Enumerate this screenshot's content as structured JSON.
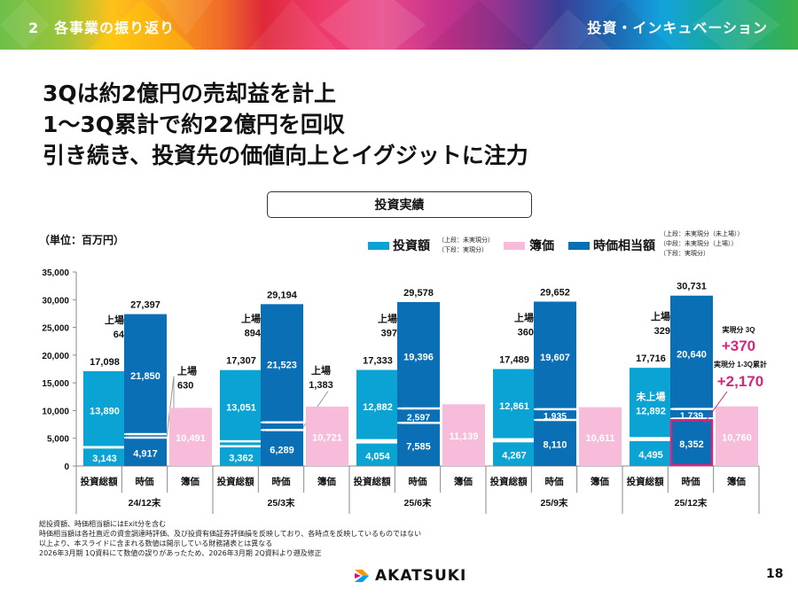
{
  "banner": {
    "section_label": "2　各事業の振り返り",
    "category_label": "投資・インキュベーション"
  },
  "headline": {
    "lines": [
      "3Qは約2億円の売却益を計上",
      "1～3Q累計で約22億円を回収",
      "引き続き、投資先の価値向上とイグジットに注力"
    ]
  },
  "section_box": {
    "label": "投資実績"
  },
  "unit_label": "（単位：百万円）",
  "legend": {
    "items": [
      {
        "label": "投資額",
        "color": "#0aa3d3",
        "notes": [
          "（上段：未実現分）",
          "（下段：実現分）"
        ]
      },
      {
        "label": "簿価",
        "color": "#f6bcd9",
        "notes": []
      },
      {
        "label": "時価相当額",
        "color": "#0b6fb5",
        "notes": [
          "（上段：未実現分（未上場））",
          "（中段：未実現分（上場））",
          "（下段：実現分）"
        ]
      }
    ]
  },
  "chart_data": {
    "type": "bar",
    "stacked": true,
    "title": "投資実績",
    "ylabel": "（単位：百万円）",
    "ylim": [
      0,
      35000
    ],
    "yticks": [
      0,
      5000,
      10000,
      15000,
      20000,
      25000,
      30000,
      35000
    ],
    "ytick_labels": [
      "0",
      "5,000",
      "10,000",
      "15,000",
      "20,000",
      "25,000",
      "30,000",
      "35,000"
    ],
    "grid": false,
    "legend_position": "top-right",
    "colors": {
      "investment": "#0aa3d3",
      "market": "#0b6fb5",
      "book": "#f6bcd9",
      "highlight": "#d6257a"
    },
    "sub_categories": [
      "投資総額",
      "時価",
      "簿価"
    ],
    "periods": [
      "24/12末",
      "25/3末",
      "25/6末",
      "25/9末",
      "25/12末"
    ],
    "groups": [
      {
        "period": "24/12末",
        "investment": {
          "total": "17,098",
          "realized": 3143,
          "unrealized": 13890,
          "listed": 64,
          "listed_label": "上場",
          "unrealized_label": ""
        },
        "market": {
          "total": "27,397",
          "realized": 4917,
          "listed": 630,
          "unlisted": 21850,
          "listed_label": "上場",
          "show_listed_value": false
        },
        "book": {
          "value": 10491
        }
      },
      {
        "period": "25/3末",
        "investment": {
          "total": "17,307",
          "realized": 3362,
          "unrealized": 13051,
          "listed": 894,
          "listed_label": "上場",
          "unrealized_label": ""
        },
        "market": {
          "total": "29,194",
          "realized": 6289,
          "listed": 1383,
          "unlisted": 21523,
          "listed_label": "上場",
          "show_listed_value": false
        },
        "book": {
          "value": 10721
        }
      },
      {
        "period": "25/6末",
        "investment": {
          "total": "17,333",
          "realized": 4054,
          "unrealized": 12882,
          "listed": 397,
          "listed_label": "上場",
          "unrealized_label": ""
        },
        "market": {
          "total": "29,578",
          "realized": 7585,
          "listed": 2597,
          "unlisted": 19396,
          "listed_label": "",
          "show_listed_value": true
        },
        "book": {
          "value": 11139
        }
      },
      {
        "period": "25/9末",
        "investment": {
          "total": "17,489",
          "realized": 4267,
          "unrealized": 12861,
          "listed": 360,
          "listed_label": "上場",
          "unrealized_label": ""
        },
        "market": {
          "total": "29,652",
          "realized": 8110,
          "listed": 1935,
          "unlisted": 19607,
          "listed_label": "",
          "show_listed_value": true
        },
        "book": {
          "value": 10611
        }
      },
      {
        "period": "25/12末",
        "investment": {
          "total": "17,716",
          "realized": 4495,
          "unrealized": 12892,
          "listed": 329,
          "listed_label": "上場",
          "unrealized_label": "未上場"
        },
        "market": {
          "total": "30,731",
          "realized": 8352,
          "listed": 1739,
          "unlisted": 20640,
          "listed_label": "",
          "show_listed_value": true,
          "highlight_realized": true
        },
        "book": {
          "value": 10760
        }
      }
    ],
    "annotations": [
      {
        "label": "実現分 3Q",
        "value": "+370"
      },
      {
        "label": "実現分 1-3Q累計",
        "value": "+2,170"
      }
    ]
  },
  "footnotes": [
    "総投資額、時価相当額にはExit分を含む",
    "時価相当額は各社直近の資金調達時評価、及び投資有価証券評価損を反映しており、各時点を反映しているものではない",
    "以上より、本スライドに含まれる数値は開示している財務諸表とは異なる",
    "2026年3月期 1Q資料にて数値の誤りがあったため、2026年3月期 2Q資料より遡及修正"
  ],
  "footer": {
    "logo_text": "AKATSUKI",
    "page_number": "18"
  }
}
